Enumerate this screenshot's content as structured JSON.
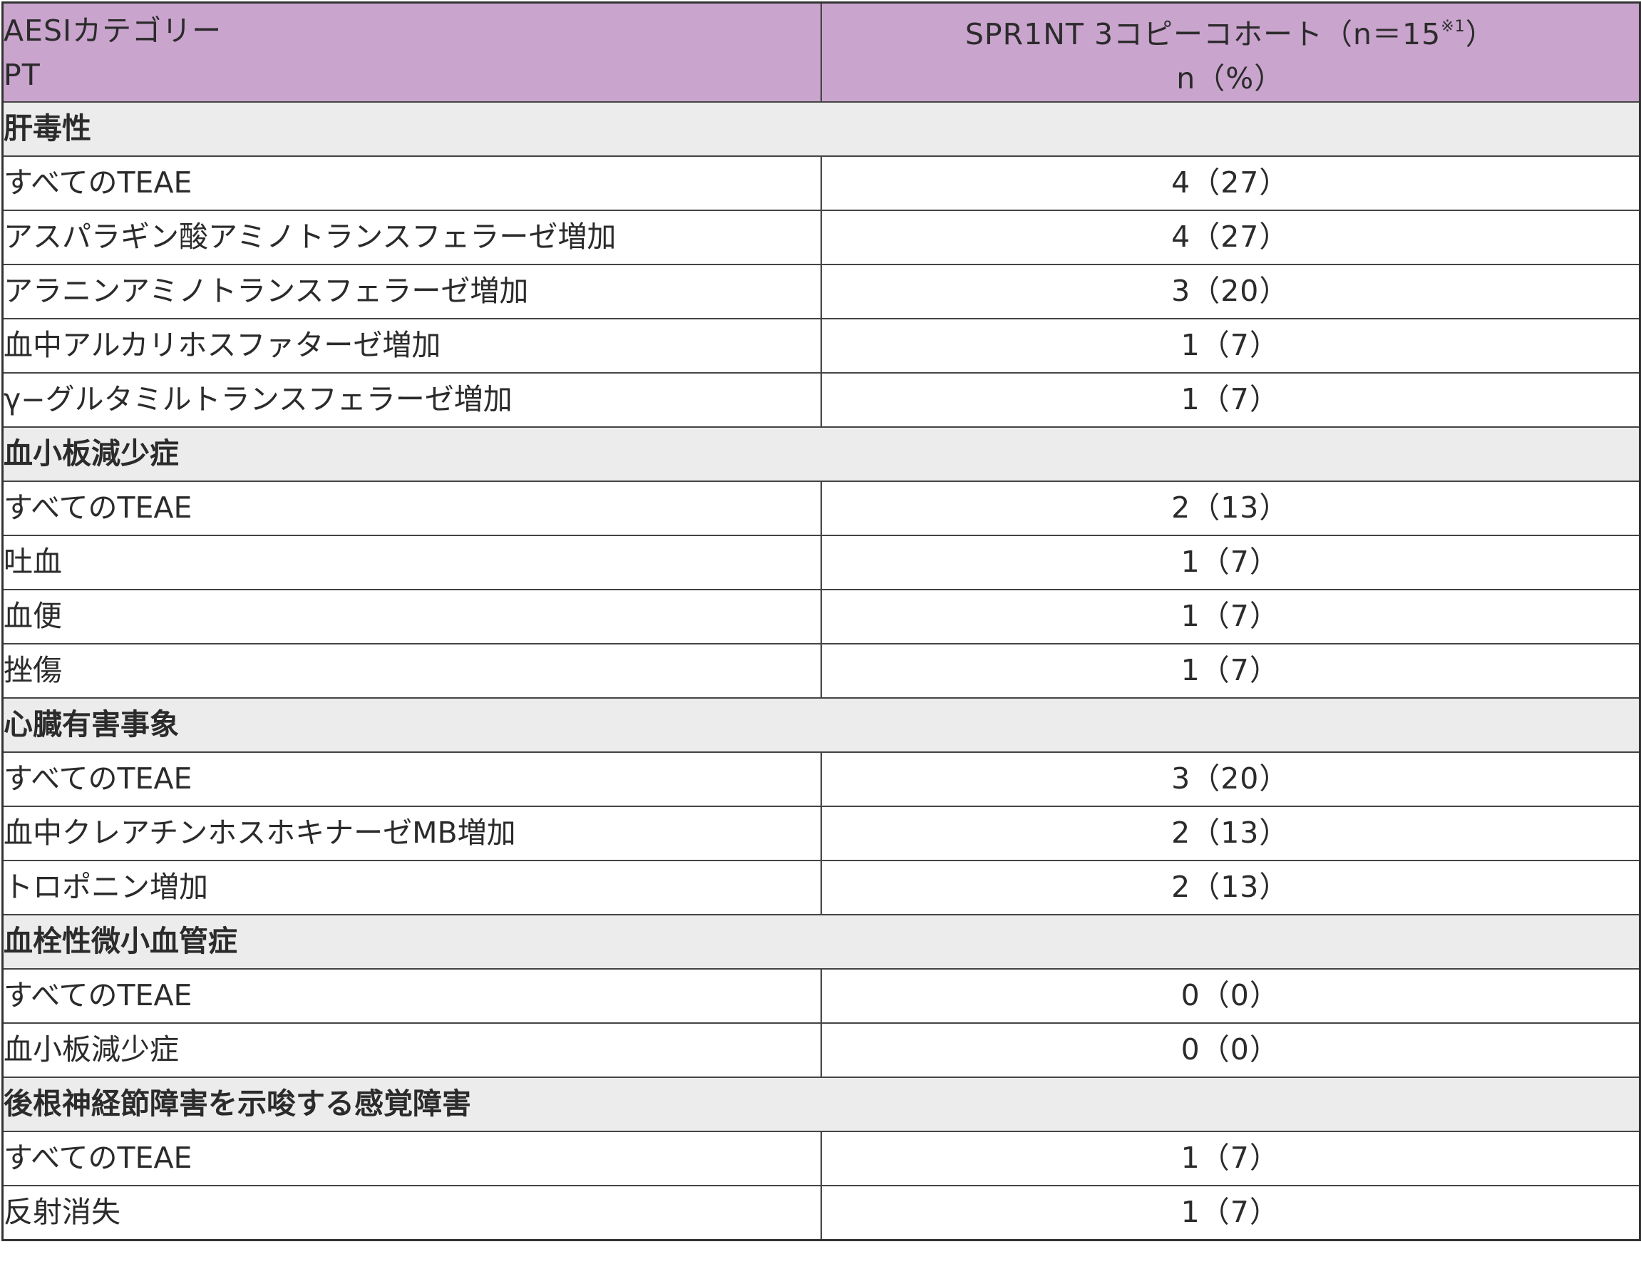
{
  "header": {
    "col1_line1": "AESIカテゴリー",
    "col1_line2": "PT",
    "col2_line1": "SPR1NT 3コピーコホート（n＝15",
    "col2_sup": "※1",
    "col2_close": "）",
    "col2_line2": "n（%）"
  },
  "categories": [
    {
      "name": "肝毒性",
      "rows": [
        {
          "label": "すべてのTEAE",
          "value": "4（27）"
        },
        {
          "label": "アスパラギン酸アミノトランスフェラーゼ増加",
          "value": "4（27）"
        },
        {
          "label": "アラニンアミノトランスフェラーゼ増加",
          "value": "3（20）"
        },
        {
          "label": "血中アルカリホスファターゼ増加",
          "value": "1（7）"
        },
        {
          "label": "γ−グルタミルトランスフェラーゼ増加",
          "value": "1（7）"
        }
      ]
    },
    {
      "name": "血小板減少症",
      "rows": [
        {
          "label": "すべてのTEAE",
          "value": "2（13）"
        },
        {
          "label": "吐血",
          "value": "1（7）"
        },
        {
          "label": "血便",
          "value": "1（7）"
        },
        {
          "label": "挫傷",
          "value": "1（7）"
        }
      ]
    },
    {
      "name": "心臓有害事象",
      "rows": [
        {
          "label": "すべてのTEAE",
          "value": "3（20）"
        },
        {
          "label": "血中クレアチンホスホキナーゼMB増加",
          "value": "2（13）"
        },
        {
          "label": "トロポニン増加",
          "value": "2（13）"
        }
      ]
    },
    {
      "name": "血栓性微小血管症",
      "rows": [
        {
          "label": "すべてのTEAE",
          "value": "0（0）"
        },
        {
          "label": "血小板減少症",
          "value": "0（0）"
        }
      ]
    },
    {
      "name": "後根神経節障害を示唆する感覚障害",
      "rows": [
        {
          "label": "すべてのTEAE",
          "value": "1（7）"
        },
        {
          "label": "反射消失",
          "value": "1（7）"
        }
      ]
    }
  ]
}
